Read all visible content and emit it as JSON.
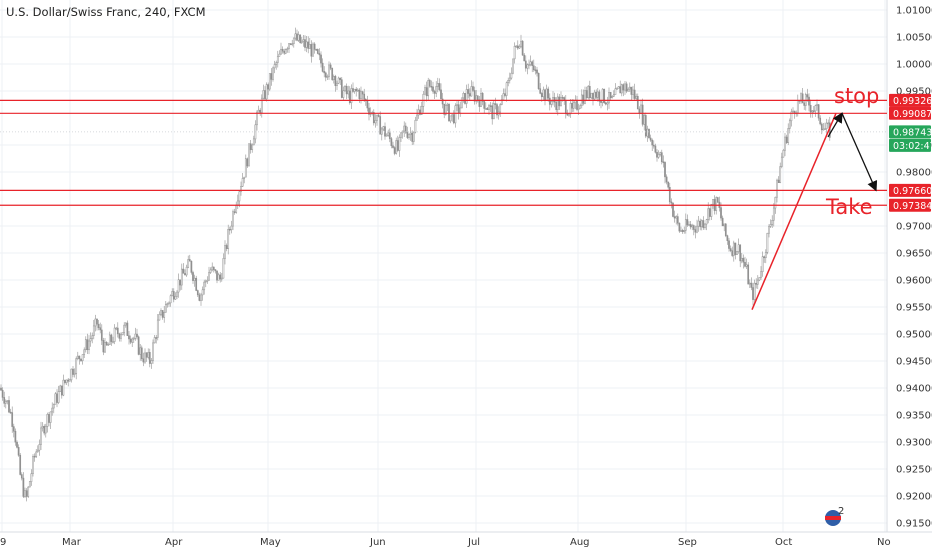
{
  "chart_data": {
    "type": "candlestick",
    "title": "U.S. Dollar/Swiss Franc, 240, FXCM",
    "ylim": [
      0.913,
      1.012
    ],
    "y_ticks": [
      "1.01000",
      "1.00500",
      "1.00000",
      "0.99500",
      "0.98500",
      "0.98000",
      "0.97000",
      "0.96500",
      "0.96000",
      "0.95500",
      "0.95000",
      "0.94500",
      "0.94000",
      "0.93500",
      "0.93000",
      "0.92500",
      "0.92000",
      "0.91500"
    ],
    "x_ticks": [
      "9",
      "Mar",
      "Apr",
      "May",
      "Jun",
      "Jul",
      "Aug",
      "Sep",
      "Oct",
      "No"
    ],
    "price_path": [
      [
        0,
        0.94
      ],
      [
        8,
        0.937
      ],
      [
        14,
        0.933
      ],
      [
        20,
        0.924
      ],
      [
        26,
        0.919
      ],
      [
        34,
        0.927
      ],
      [
        44,
        0.933
      ],
      [
        56,
        0.938
      ],
      [
        68,
        0.942
      ],
      [
        80,
        0.946
      ],
      [
        90,
        0.949
      ],
      [
        97,
        0.952
      ],
      [
        105,
        0.947
      ],
      [
        115,
        0.95
      ],
      [
        125,
        0.951
      ],
      [
        135,
        0.949
      ],
      [
        142,
        0.946
      ],
      [
        150,
        0.945
      ],
      [
        158,
        0.952
      ],
      [
        168,
        0.956
      ],
      [
        180,
        0.96
      ],
      [
        190,
        0.963
      ],
      [
        200,
        0.957
      ],
      [
        210,
        0.962
      ],
      [
        220,
        0.96
      ],
      [
        228,
        0.968
      ],
      [
        236,
        0.975
      ],
      [
        244,
        0.98
      ],
      [
        252,
        0.986
      ],
      [
        260,
        0.992
      ],
      [
        268,
        0.996
      ],
      [
        276,
        1.0
      ],
      [
        284,
        1.003
      ],
      [
        292,
        1.005
      ],
      [
        300,
        1.004
      ],
      [
        310,
        1.003
      ],
      [
        318,
        1.001
      ],
      [
        326,
        0.999
      ],
      [
        334,
        0.998
      ],
      [
        342,
        0.995
      ],
      [
        350,
        0.994
      ],
      [
        358,
        0.995
      ],
      [
        366,
        0.993
      ],
      [
        374,
        0.99
      ],
      [
        382,
        0.988
      ],
      [
        390,
        0.986
      ],
      [
        398,
        0.984
      ],
      [
        404,
        0.988
      ],
      [
        412,
        0.987
      ],
      [
        420,
        0.992
      ],
      [
        428,
        0.996
      ],
      [
        436,
        0.996
      ],
      [
        444,
        0.992
      ],
      [
        452,
        0.99
      ],
      [
        460,
        0.992
      ],
      [
        468,
        0.995
      ],
      [
        476,
        0.994
      ],
      [
        484,
        0.993
      ],
      [
        492,
        0.991
      ],
      [
        500,
        0.992
      ],
      [
        508,
        0.996
      ],
      [
        514,
        1.002
      ],
      [
        520,
        1.005
      ],
      [
        526,
        1.0
      ],
      [
        534,
        0.999
      ],
      [
        542,
        0.995
      ],
      [
        552,
        0.993
      ],
      [
        562,
        0.993
      ],
      [
        572,
        0.991
      ],
      [
        582,
        0.994
      ],
      [
        592,
        0.995
      ],
      [
        602,
        0.994
      ],
      [
        612,
        0.993
      ],
      [
        622,
        0.996
      ],
      [
        632,
        0.995
      ],
      [
        640,
        0.992
      ],
      [
        646,
        0.988
      ],
      [
        654,
        0.985
      ],
      [
        662,
        0.982
      ],
      [
        668,
        0.977
      ],
      [
        674,
        0.972
      ],
      [
        680,
        0.969
      ],
      [
        688,
        0.97
      ],
      [
        696,
        0.97
      ],
      [
        704,
        0.971
      ],
      [
        712,
        0.974
      ],
      [
        718,
        0.974
      ],
      [
        724,
        0.969
      ],
      [
        730,
        0.966
      ],
      [
        738,
        0.966
      ],
      [
        746,
        0.962
      ],
      [
        752,
        0.957
      ],
      [
        758,
        0.96
      ],
      [
        764,
        0.965
      ],
      [
        770,
        0.97
      ],
      [
        776,
        0.976
      ],
      [
        782,
        0.983
      ],
      [
        788,
        0.988
      ],
      [
        794,
        0.992
      ],
      [
        800,
        0.993
      ],
      [
        806,
        0.993
      ],
      [
        812,
        0.992
      ],
      [
        818,
        0.991
      ],
      [
        824,
        0.988
      ],
      [
        830,
        0.9875
      ]
    ],
    "horizontal_levels": [
      0.99326,
      0.99087,
      0.9766,
      0.97384
    ],
    "current_price": 0.98743,
    "countdown": "03:02:47",
    "level_labels": [
      "0.99326",
      "0.99087",
      "0.97660",
      "0.97384"
    ],
    "current_label": "0.98743",
    "annotations": {
      "stop": "stop",
      "take": "Take"
    },
    "colors": {
      "level_line": "#e8232a",
      "tag_red": "#e8232a",
      "tag_green": "#26a65b",
      "candle": "#8f8f8f",
      "grid": "#eef1f4"
    }
  },
  "watermark_text": "2"
}
